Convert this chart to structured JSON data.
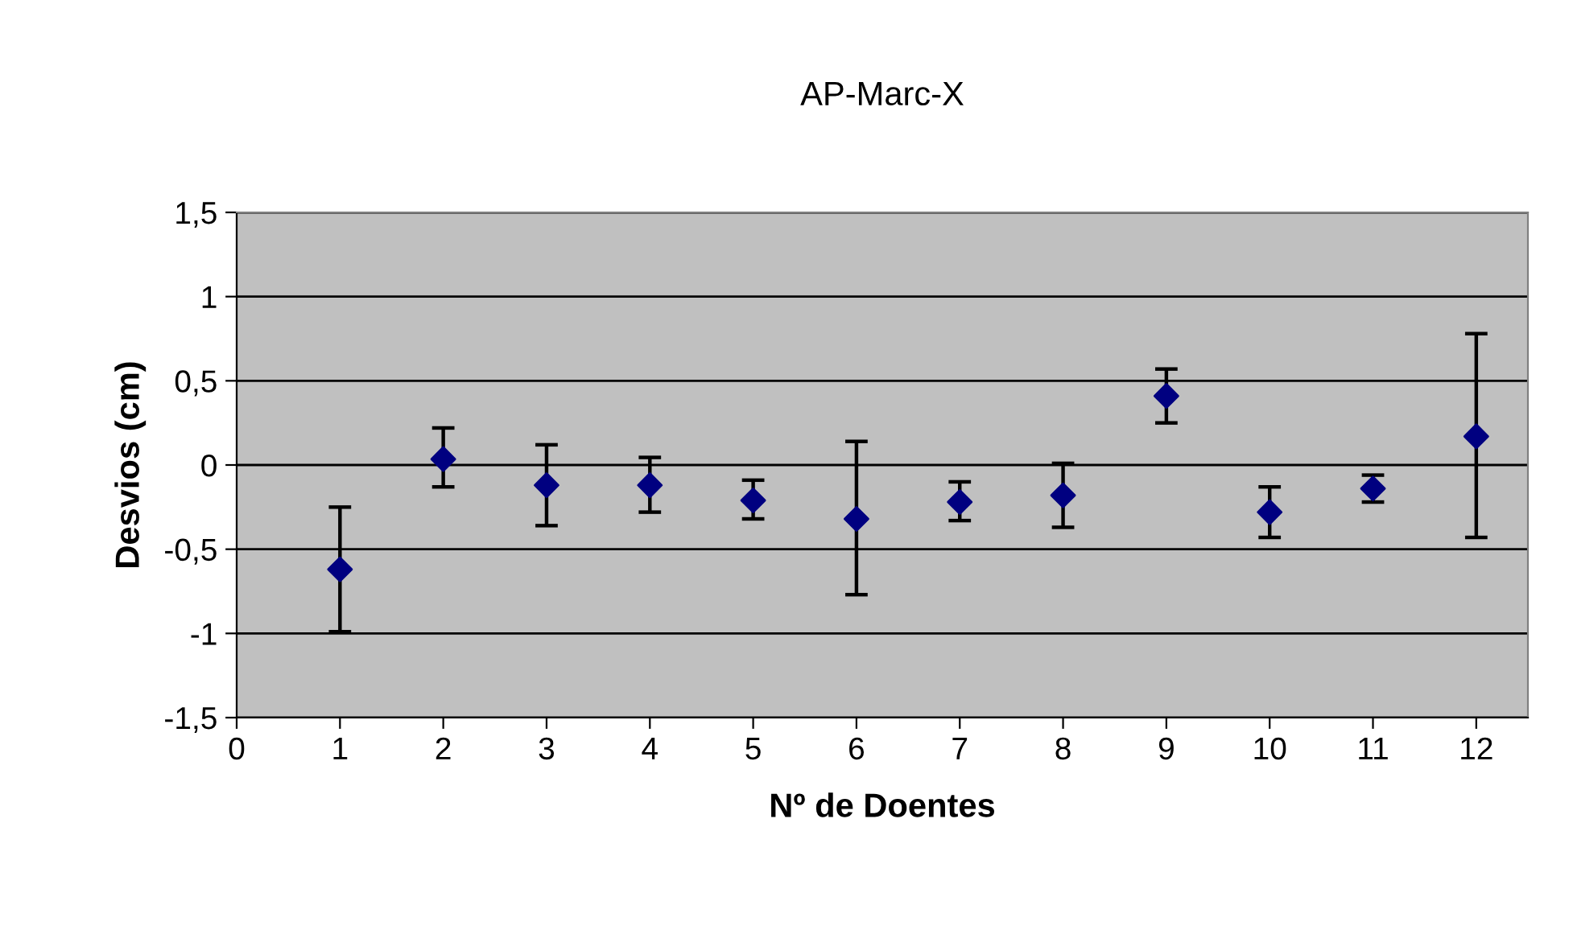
{
  "chart_data": {
    "type": "scatter",
    "title": "AP-Marc-X",
    "xlabel": "Nº de Doentes",
    "ylabel": "Desvios (cm)",
    "x": [
      1,
      2,
      3,
      4,
      5,
      6,
      7,
      8,
      9,
      10,
      11,
      12
    ],
    "series": [
      {
        "color": "#000080",
        "values": [
          -0.62,
          0.035,
          -0.12,
          -0.12,
          -0.21,
          -0.32,
          -0.22,
          -0.18,
          0.41,
          -0.28,
          -0.14,
          0.17
        ],
        "errors": [
          [
            -0.99,
            -0.25
          ],
          [
            -0.13,
            0.22
          ],
          [
            -0.36,
            0.12
          ],
          [
            -0.28,
            0.045
          ],
          [
            -0.32,
            -0.09
          ],
          [
            -0.77,
            0.14
          ],
          [
            -0.33,
            -0.1
          ],
          [
            -0.37,
            0.01
          ],
          [
            0.25,
            0.57
          ],
          [
            -0.43,
            -0.13
          ],
          [
            -0.22,
            -0.06
          ],
          [
            -0.43,
            0.78
          ]
        ]
      }
    ],
    "marker": "diamond",
    "grid": "y",
    "legend": false,
    "xlim": [
      0,
      12.5
    ],
    "xticks": [
      0,
      1,
      2,
      3,
      4,
      5,
      6,
      7,
      8,
      9,
      10,
      11,
      12
    ],
    "ylim": [
      -1.5,
      1.5
    ],
    "yticks": [
      {
        "value": -1.5,
        "label": "-1,5"
      },
      -1,
      {
        "value": -0.5,
        "label": "-0,5"
      },
      0,
      {
        "value": 0.5,
        "label": "0,5"
      },
      1,
      {
        "value": 1.5,
        "label": "1,5"
      }
    ]
  }
}
